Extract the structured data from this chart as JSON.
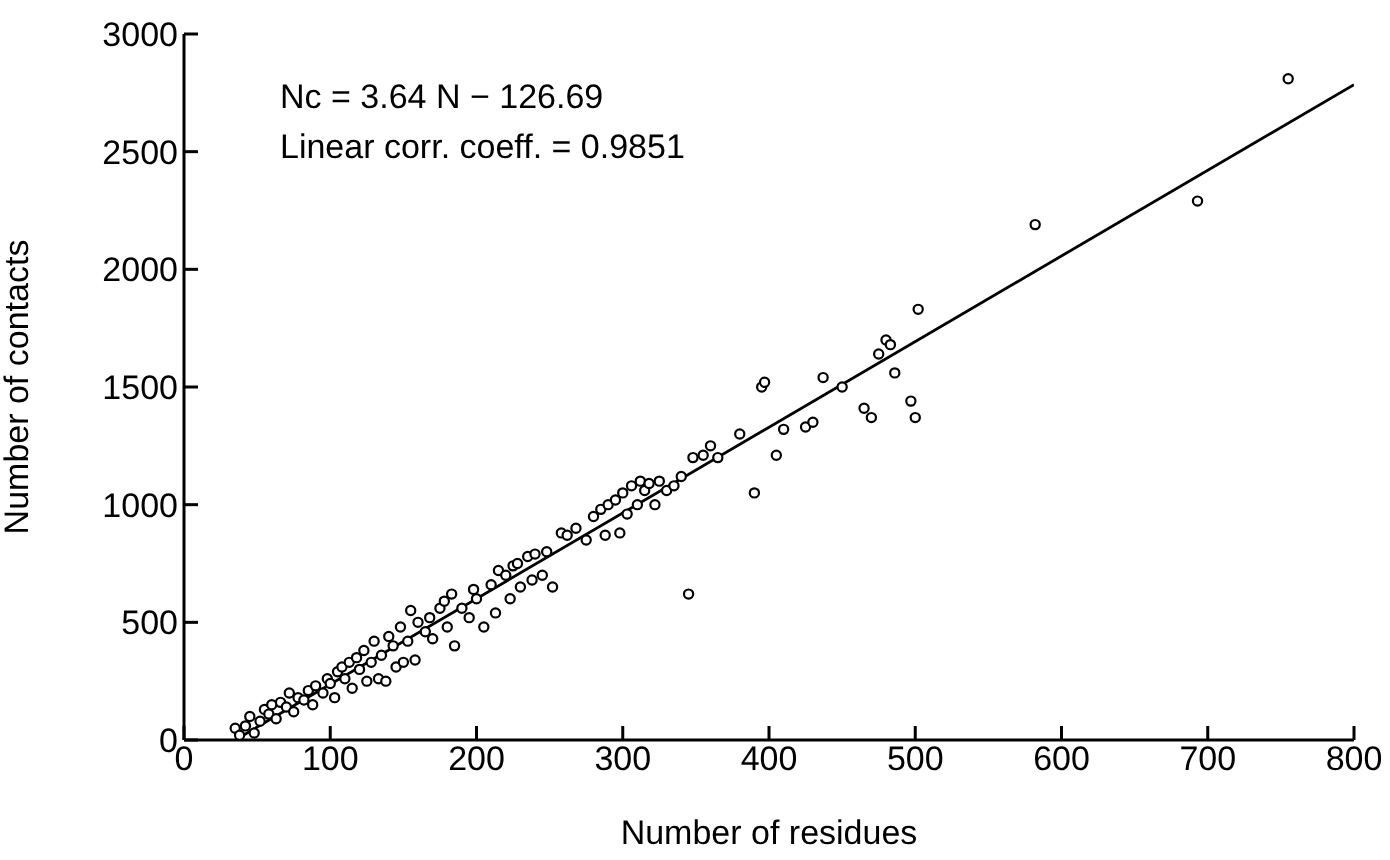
{
  "chart_data": {
    "type": "scatter",
    "xlabel": "Number of residues",
    "ylabel": "Number of contacts",
    "annotations": [
      "Nc = 3.64 N − 126.69",
      "Linear corr. coeff. = 0.9851"
    ],
    "xlim": [
      0,
      800
    ],
    "ylim": [
      0,
      3000
    ],
    "xticks": [
      0,
      100,
      200,
      300,
      400,
      500,
      600,
      700,
      800
    ],
    "yticks": [
      0,
      500,
      1000,
      1500,
      2000,
      2500,
      3000
    ],
    "grid": false,
    "legend": false,
    "marker": "circle",
    "series": [
      {
        "color": "#000000",
        "x": [
          35,
          38,
          42,
          45,
          48,
          52,
          55,
          58,
          60,
          63,
          66,
          70,
          72,
          75,
          78,
          82,
          85,
          88,
          90,
          95,
          98,
          100,
          103,
          105,
          108,
          110,
          113,
          115,
          118,
          120,
          123,
          125,
          128,
          130,
          133,
          135,
          138,
          140,
          143,
          145,
          148,
          150,
          153,
          155,
          158,
          160,
          165,
          168,
          170,
          175,
          178,
          180,
          183,
          185,
          190,
          195,
          198,
          200,
          205,
          210,
          213,
          215,
          220,
          223,
          225,
          228,
          230,
          235,
          238,
          240,
          245,
          248,
          252,
          258,
          262,
          268,
          275,
          280,
          285,
          288,
          290,
          295,
          298,
          300,
          303,
          306,
          310,
          312,
          315,
          318,
          322,
          325,
          330,
          335,
          340,
          345,
          348,
          355,
          360,
          365,
          380,
          390,
          395,
          397,
          405,
          410,
          425,
          430,
          437,
          450,
          465,
          470,
          475,
          480,
          483,
          486,
          497,
          500,
          502,
          582,
          693,
          755
        ],
        "values": [
          50,
          20,
          60,
          100,
          30,
          80,
          130,
          110,
          150,
          90,
          160,
          140,
          200,
          120,
          180,
          170,
          210,
          150,
          230,
          200,
          260,
          240,
          180,
          290,
          310,
          260,
          330,
          220,
          350,
          300,
          380,
          250,
          330,
          420,
          260,
          360,
          250,
          440,
          400,
          310,
          480,
          330,
          420,
          550,
          340,
          500,
          460,
          520,
          430,
          560,
          590,
          480,
          620,
          400,
          560,
          520,
          640,
          600,
          480,
          660,
          540,
          720,
          700,
          600,
          740,
          750,
          650,
          780,
          680,
          790,
          700,
          800,
          650,
          880,
          870,
          900,
          850,
          950,
          980,
          870,
          1000,
          1020,
          880,
          1050,
          960,
          1080,
          1000,
          1100,
          1060,
          1090,
          1000,
          1100,
          1060,
          1080,
          1120,
          620,
          1200,
          1210,
          1250,
          1200,
          1300,
          1050,
          1500,
          1520,
          1210,
          1320,
          1330,
          1350,
          1540,
          1500,
          1410,
          1370,
          1640,
          1700,
          1680,
          1560,
          1440,
          1370,
          1830,
          2190,
          2290,
          2810
        ]
      },
      {
        "type": "line",
        "color": "#000000",
        "x": [
          35,
          800
        ],
        "values": [
          0,
          2785
        ],
        "line_style": "solid",
        "marker": "none"
      }
    ]
  }
}
